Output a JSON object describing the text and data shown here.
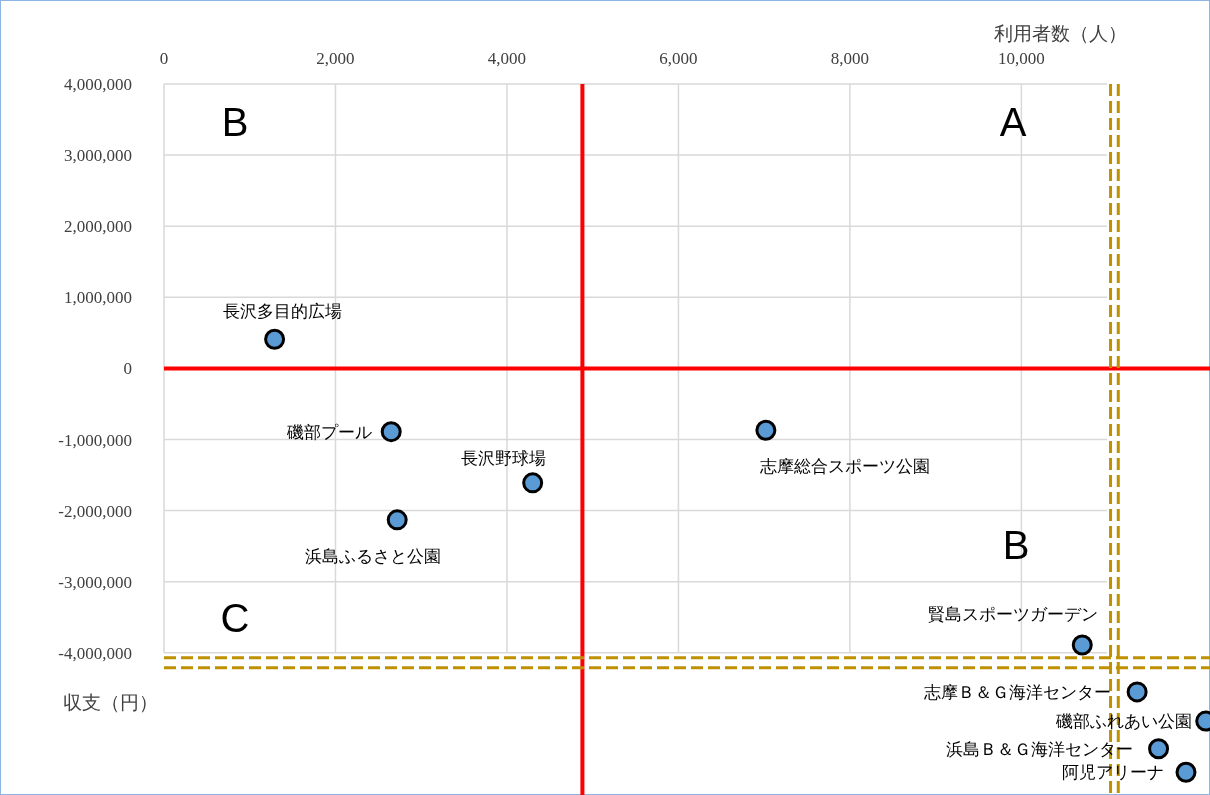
{
  "chart_data": {
    "type": "scatter",
    "xlabel": "利用者数（人）",
    "ylabel": "収支（円）",
    "xlim": [
      0,
      12200
    ],
    "ylim": [
      -6000000,
      4000000
    ],
    "xticks": [
      0,
      {
        "value": 2000,
        "label": "2,000"
      },
      {
        "value": 4000,
        "label": "4,000"
      },
      {
        "value": 6000,
        "label": "6,000"
      },
      {
        "value": 8000,
        "label": "8,000"
      },
      {
        "value": 10000,
        "label": "10,000"
      }
    ],
    "yticks": [
      {
        "value": -4000000,
        "label": "-4,000,000"
      },
      {
        "value": -3000000,
        "label": "-3,000,000"
      },
      {
        "value": -2000000,
        "label": "-2,000,000"
      },
      {
        "value": -1000000,
        "label": "-1,000,000"
      },
      0,
      {
        "value": 1000000,
        "label": "1,000,000"
      },
      {
        "value": 2000000,
        "label": "2,000,000"
      },
      {
        "value": 3000000,
        "label": "3,000,000"
      },
      {
        "value": 4000000,
        "label": "4,000,000"
      }
    ],
    "grid": true,
    "marker": "circle",
    "series": [
      {
        "color": "#5b9bd5",
        "x": [
          1290,
          2650,
          4300,
          2720,
          7020,
          10710,
          11350,
          12150,
          11600,
          11920
        ],
        "values": [
          410000,
          -890000,
          -1610000,
          -2130000,
          -870000,
          -3890000,
          -4550000,
          -4960000,
          -5350000,
          -5680000
        ]
      }
    ],
    "ref_lines": [
      {
        "axis": "x",
        "value": 4880,
        "color": "#ff0000",
        "line_style": "solid"
      },
      {
        "axis": "y",
        "value": 0,
        "color": "#ff0000",
        "line_style": "solid"
      },
      {
        "axis": "x",
        "value": 11040,
        "color": "#bf9000",
        "line_style": "dashed"
      },
      {
        "axis": "x",
        "value": 11130,
        "color": "#bf9000",
        "line_style": "dashed"
      },
      {
        "axis": "y",
        "value": -4070000,
        "color": "#bf9000",
        "line_style": "dashed"
      },
      {
        "axis": "y",
        "value": -4210000,
        "color": "#bf9000",
        "line_style": "dashed"
      }
    ],
    "annotations": [
      "B",
      "A",
      "B",
      "C",
      {
        "text": "長沢多目的広場",
        "x": 1290,
        "y": 410000
      },
      {
        "text": "磯部プール",
        "x": 2650,
        "y": -890000
      },
      {
        "text": "長沢野球場",
        "x": 4300,
        "y": -1610000
      },
      {
        "text": "浜島ふるさと公園",
        "x": 2720,
        "y": -2130000
      },
      {
        "text": "志摩総合スポーツ公園",
        "x": 7020,
        "y": -870000
      },
      {
        "text": "賢島スポーツガーデン",
        "x": 10710,
        "y": -3890000
      },
      {
        "text": "志摩Ｂ＆Ｇ海洋センター",
        "x": 11350,
        "y": -4550000
      },
      {
        "text": "磯部ふれあい公園",
        "x": 12150,
        "y": -4960000
      },
      {
        "text": "浜島Ｂ＆Ｇ海洋センター",
        "x": 11600,
        "y": -5350000
      },
      {
        "text": "阿児アリーナ",
        "x": 11920,
        "y": -5680000
      }
    ]
  }
}
